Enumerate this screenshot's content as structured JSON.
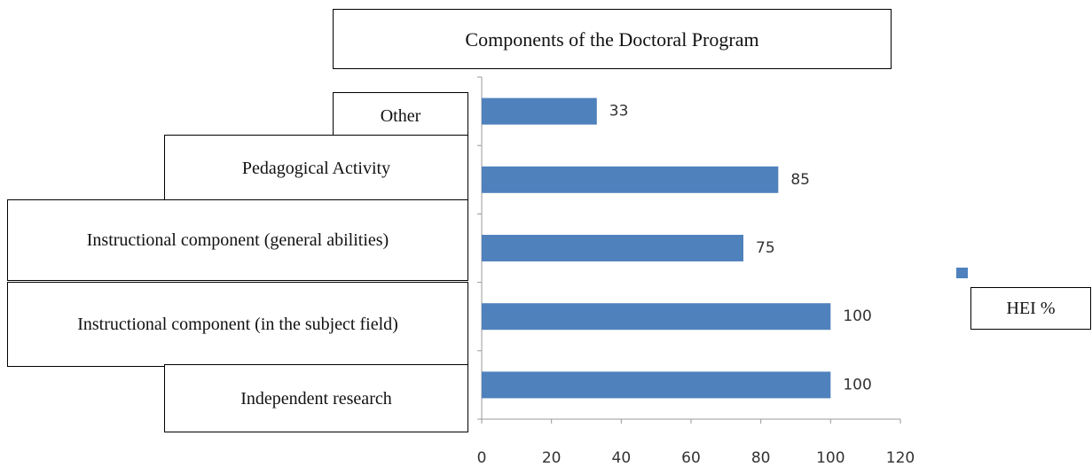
{
  "chart_data": {
    "type": "bar",
    "orientation": "horizontal",
    "title": "Components of the Doctoral Program",
    "categories": [
      "Other",
      "Pedagogical Activity",
      "Instructional component (general abilities)",
      "Instructional component (in the subject field)",
      "Independent research"
    ],
    "series": [
      {
        "name": "HEI %",
        "color": "#4f81bd",
        "values": [
          33,
          85,
          75,
          100,
          100
        ]
      }
    ],
    "xlim": [
      0,
      120
    ],
    "xticks": [
      0,
      20,
      40,
      60,
      80,
      100,
      120
    ],
    "legend": "right"
  }
}
